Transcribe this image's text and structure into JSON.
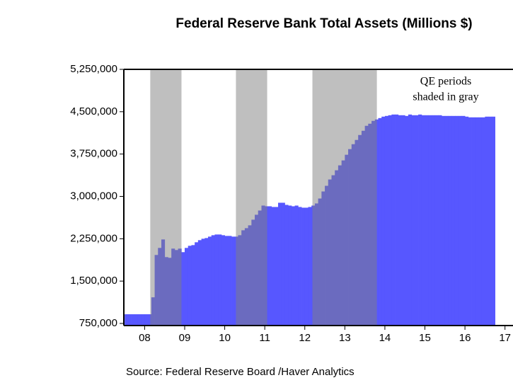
{
  "chart_data": {
    "type": "bar",
    "title": "Federal Reserve Bank Total Assets (Millions $)",
    "source": "Source:  Federal Reserve Board /Haver Analytics",
    "annotation": [
      "QE periods",
      "shaded in gray"
    ],
    "color": "#5757ff",
    "shaded_periods": [
      [
        2008.64,
        2009.42
      ],
      [
        2010.78,
        2011.56
      ],
      [
        2012.69,
        2014.3
      ]
    ],
    "shade_color": "#808080",
    "x": [
      2008.0,
      2008.083,
      2008.167,
      2008.25,
      2008.333,
      2008.417,
      2008.5,
      2008.583,
      2008.667,
      2008.75,
      2008.833,
      2008.917,
      2009.0,
      2009.083,
      2009.167,
      2009.25,
      2009.333,
      2009.417,
      2009.5,
      2009.583,
      2009.667,
      2009.75,
      2009.833,
      2009.917,
      2010.0,
      2010.083,
      2010.167,
      2010.25,
      2010.333,
      2010.417,
      2010.5,
      2010.583,
      2010.667,
      2010.75,
      2010.833,
      2010.917,
      2011.0,
      2011.083,
      2011.167,
      2011.25,
      2011.333,
      2011.417,
      2011.5,
      2011.583,
      2011.667,
      2011.75,
      2011.833,
      2011.917,
      2012.0,
      2012.083,
      2012.167,
      2012.25,
      2012.333,
      2012.417,
      2012.5,
      2012.583,
      2012.667,
      2012.75,
      2012.833,
      2012.917,
      2013.0,
      2013.083,
      2013.167,
      2013.25,
      2013.333,
      2013.417,
      2013.5,
      2013.583,
      2013.667,
      2013.75,
      2013.833,
      2013.917,
      2014.0,
      2014.083,
      2014.167,
      2014.25,
      2014.333,
      2014.417,
      2014.5,
      2014.583,
      2014.667,
      2014.75,
      2014.833,
      2014.917,
      2015.0,
      2015.083,
      2015.167,
      2015.25,
      2015.333,
      2015.417,
      2015.5,
      2015.583,
      2015.667,
      2015.75,
      2015.833,
      2015.917,
      2016.0,
      2016.083,
      2016.167,
      2016.25,
      2016.333,
      2016.417,
      2016.5,
      2016.583,
      2016.667,
      2016.75,
      2016.833,
      2016.917,
      2017.0,
      2017.083,
      2017.167
    ],
    "values": [
      912500,
      912500,
      912500,
      912500,
      912500,
      912500,
      912500,
      912500,
      1212500,
      1962500,
      2087500,
      2237500,
      1925000,
      1912500,
      2075000,
      2050000,
      2075000,
      2012500,
      2087500,
      2125000,
      2137500,
      2187500,
      2225000,
      2250000,
      2262500,
      2287500,
      2312500,
      2325000,
      2325000,
      2312500,
      2300000,
      2300000,
      2287500,
      2287500,
      2312500,
      2400000,
      2437500,
      2487500,
      2587500,
      2675000,
      2750000,
      2837500,
      2825000,
      2825000,
      2812500,
      2812500,
      2887500,
      2887500,
      2850000,
      2837500,
      2825000,
      2837500,
      2812500,
      2800000,
      2800000,
      2812500,
      2837500,
      2875000,
      2962500,
      3087500,
      3187500,
      3300000,
      3375000,
      3462500,
      3550000,
      3637500,
      3737500,
      3837500,
      3925000,
      4000000,
      4087500,
      4162500,
      4250000,
      4287500,
      4337500,
      4362500,
      4387500,
      4412500,
      4425000,
      4437500,
      4450000,
      4450000,
      4437500,
      4437500,
      4425000,
      4450000,
      4437500,
      4437500,
      4450000,
      4437500,
      4437500,
      4437500,
      4437500,
      4437500,
      4437500,
      4425000,
      4425000,
      4425000,
      4425000,
      4425000,
      4425000,
      4425000,
      4412500,
      4400000,
      4400000,
      4400000,
      4400000,
      4400000,
      4412500,
      4412500,
      4412500
    ],
    "xlim": [
      2007.98,
      2017.7
    ],
    "xticks": [
      {
        "value": 2008.5,
        "label": "08"
      },
      {
        "value": 2009.5,
        "label": "09"
      },
      {
        "value": 2010.5,
        "label": "10"
      },
      {
        "value": 2011.5,
        "label": "11"
      },
      {
        "value": 2012.5,
        "label": "12"
      },
      {
        "value": 2013.5,
        "label": "13"
      },
      {
        "value": 2014.5,
        "label": "14"
      },
      {
        "value": 2015.5,
        "label": "15"
      },
      {
        "value": 2016.5,
        "label": "16"
      },
      {
        "value": 2017.5,
        "label": "17"
      }
    ],
    "ylim": [
      712500,
      5250000
    ],
    "yticks": [
      {
        "value": 750000,
        "label": "750,000"
      },
      {
        "value": 1500000,
        "label": "1,500,000"
      },
      {
        "value": 2250000,
        "label": "2,250,000"
      },
      {
        "value": 3000000,
        "label": "3,000,000"
      },
      {
        "value": 3750000,
        "label": "3,750,000"
      },
      {
        "value": 4500000,
        "label": "4,500,000"
      },
      {
        "value": 5250000,
        "label": "5,250,000"
      }
    ]
  }
}
